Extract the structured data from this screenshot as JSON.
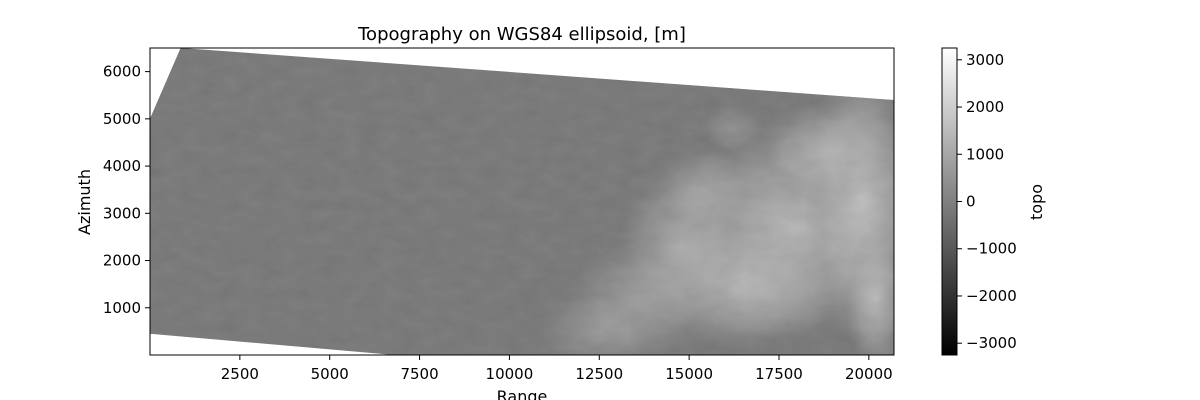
{
  "chart_data": {
    "type": "heatmap",
    "title": "Topography on WGS84 ellipsoid, [m]",
    "xlabel": "Range",
    "ylabel": "Azimuth",
    "xlim": [
      0,
      20700
    ],
    "ylim": [
      0,
      6500
    ],
    "x_ticks": [
      2500,
      5000,
      7500,
      10000,
      12500,
      15000,
      17500,
      20000
    ],
    "y_ticks": [
      1000,
      2000,
      3000,
      4000,
      5000,
      6000
    ],
    "colorbar": {
      "label": "topo",
      "colormap": "gray",
      "range": [
        -3250,
        3250
      ],
      "ticks": [
        -3000,
        -2000,
        -1000,
        0,
        1000,
        2000,
        3000
      ],
      "tick_labels": [
        "−3000",
        "−2000",
        "−1000",
        "0",
        "1000",
        "2000",
        "3000"
      ]
    },
    "data_footprint": {
      "polygon": [
        [
          0,
          5000
        ],
        [
          850,
          6500
        ],
        [
          20700,
          5400
        ],
        [
          20700,
          0
        ],
        [
          6800,
          0
        ],
        [
          0,
          450
        ]
      ],
      "lowland_value": 0,
      "mountain_region": "east of range ≈12500–20700, peaks up to ≈3000 m"
    }
  }
}
